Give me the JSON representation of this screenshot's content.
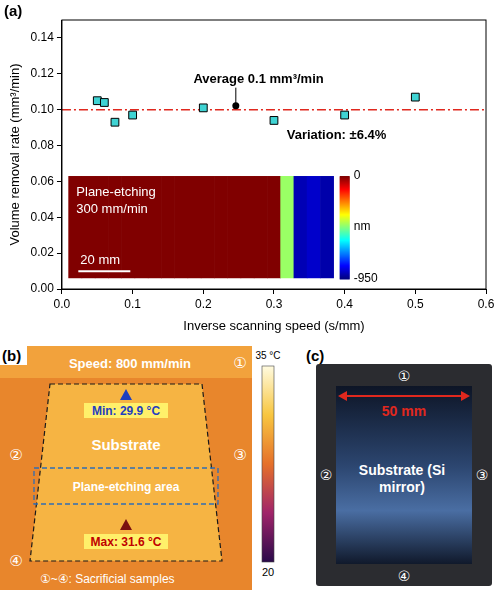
{
  "chart_data": {
    "type": "scatter",
    "panel_label": "(a)",
    "x_label": "Inverse scanning speed (s/mm)",
    "y_label": "Volume removal rate (mm³/min)",
    "x": [
      0.05,
      0.06,
      0.075,
      0.1,
      0.2,
      0.3,
      0.4,
      0.5
    ],
    "values": [
      0.105,
      0.104,
      0.093,
      0.097,
      0.101,
      0.094,
      0.097,
      0.107
    ],
    "color": "#3fd3d3",
    "marker": "square",
    "xlim": [
      0,
      0.6
    ],
    "xticks": [
      {
        "value": 0,
        "label": "0.0"
      },
      0.1,
      0.2,
      0.3,
      0.4,
      0.5,
      0.6
    ],
    "ylim": [
      0,
      0.15
    ],
    "yticks": [
      {
        "value": 0,
        "label": "0.00"
      },
      0.02,
      0.04,
      0.06,
      0.08,
      {
        "value": 0.1,
        "label": "0.10"
      },
      0.12,
      0.14
    ],
    "grid": false,
    "reference_line": {
      "value": 0.1,
      "color": "#e0281e",
      "line_style": "dashdot",
      "label": "Average 0.1 mm³/min"
    },
    "annotation": "Variation: ±6.4%",
    "inset": {
      "title": "Plane-etching",
      "subtitle": "300 mm/min",
      "scale_bar": "20 mm",
      "depth_profile": [
        0,
        0,
        0,
        0,
        0,
        0,
        0,
        0,
        0,
        0,
        0,
        0,
        0,
        0,
        0,
        0,
        -450,
        -900,
        -880,
        -910
      ],
      "colorbar": {
        "range": [
          -950,
          0
        ],
        "ticks": [
          0,
          -950
        ],
        "label": "nm"
      }
    }
  },
  "image_panels": [
    {
      "label": "(b)",
      "speed": "Speed: 800 mm/min",
      "min": "Min: 29.9 °C",
      "max": "Max: 31.6 °C",
      "substrate": "Substrate",
      "etching_area": "Plane-etching area",
      "note": "①~④: Sacrificial samples",
      "samples": [
        "①",
        "②",
        "③",
        "④"
      ],
      "colorbar_labels": [
        "35 °C",
        "20"
      ]
    },
    {
      "label": "(c)",
      "dimension": "50 mm",
      "substrate": "Substrate (Si mirror)",
      "samples": [
        "①",
        "②",
        "③",
        "④"
      ]
    }
  ]
}
